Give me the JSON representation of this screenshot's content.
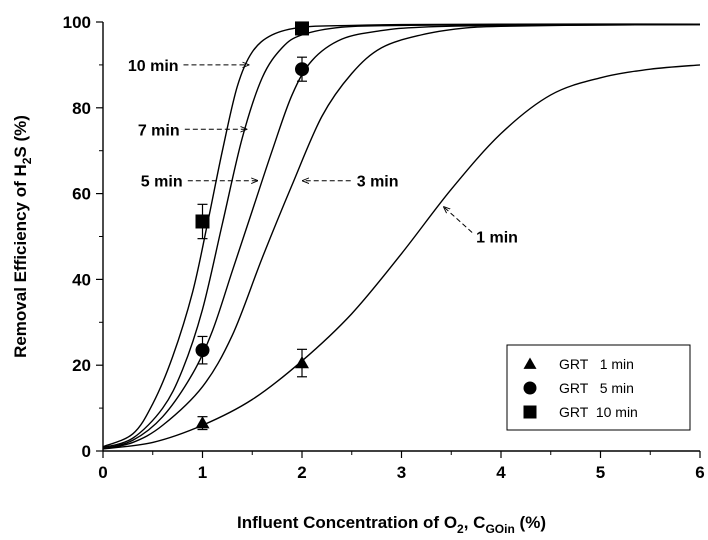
{
  "chart_data": {
    "type": "scatter",
    "xlabel": {
      "main": "Influent Concentration of O",
      "sub1": "2",
      "mid": ", C",
      "sub2": "GOin",
      "end": " (%)"
    },
    "ylabel": {
      "main": "Removal Efficiency of H",
      "sub": "2",
      "end": "S (%)"
    },
    "xlim": [
      0,
      6
    ],
    "ylim": [
      0,
      100
    ],
    "x_ticks": [
      0,
      1,
      2,
      3,
      4,
      5,
      6
    ],
    "y_ticks": [
      0,
      20,
      40,
      60,
      80,
      100
    ],
    "grid": false,
    "legend_position": "bottom-right",
    "model_curves": [
      {
        "label": "1 min",
        "x": [
          0,
          0.5,
          1,
          1.5,
          2,
          2.5,
          3,
          3.5,
          4,
          4.5,
          5,
          5.5,
          6
        ],
        "y": [
          0.5,
          2,
          6,
          12,
          21,
          32,
          46,
          61,
          74,
          83,
          87,
          89,
          90
        ]
      },
      {
        "label": "3 min",
        "x": [
          0,
          0.3,
          0.6,
          1,
          1.3,
          1.6,
          1.9,
          2.2,
          2.5,
          2.8,
          3.2,
          3.6,
          4,
          5,
          6
        ],
        "y": [
          0.5,
          2,
          6,
          15,
          27,
          45,
          62,
          78,
          88,
          94,
          97,
          98.5,
          99,
          99.3,
          99.4
        ]
      },
      {
        "label": "5 min",
        "x": [
          0,
          0.3,
          0.6,
          0.9,
          1.1,
          1.3,
          1.5,
          1.7,
          1.9,
          2.1,
          2.4,
          2.8,
          3.2,
          4,
          6
        ],
        "y": [
          0.5,
          2.5,
          8,
          18,
          28,
          42,
          56,
          70,
          83,
          91,
          96,
          98,
          98.8,
          99.2,
          99.4
        ]
      },
      {
        "label": "7 min",
        "x": [
          0,
          0.3,
          0.6,
          0.8,
          1,
          1.2,
          1.4,
          1.6,
          1.8,
          2,
          2.4,
          3,
          4,
          6
        ],
        "y": [
          0.8,
          3,
          10,
          19,
          33,
          53,
          73,
          87,
          94,
          97,
          98.8,
          99.2,
          99.4,
          99.4
        ]
      },
      {
        "label": "10 min",
        "x": [
          0,
          0.3,
          0.5,
          0.7,
          0.9,
          1.05,
          1.2,
          1.35,
          1.5,
          1.7,
          2,
          2.5,
          3,
          4,
          6
        ],
        "y": [
          1,
          4,
          11,
          22,
          37,
          53,
          70,
          85,
          93,
          97,
          98.8,
          99.2,
          99.4,
          99.5,
          99.5
        ]
      }
    ],
    "curve_annotations": [
      {
        "label": "10 min",
        "text_at": [
          0.25,
          90
        ],
        "arrow_to": [
          1.47,
          90
        ]
      },
      {
        "label": "7 min",
        "text_at": [
          0.35,
          75
        ],
        "arrow_to": [
          1.45,
          75
        ]
      },
      {
        "label": "5 min",
        "text_at": [
          0.38,
          63
        ],
        "arrow_to": [
          1.56,
          63
        ]
      },
      {
        "label": "3 min",
        "text_at": [
          2.55,
          63
        ],
        "arrow_to": [
          2.0,
          63
        ]
      },
      {
        "label": "1 min",
        "text_at": [
          3.75,
          50
        ],
        "arrow_to": [
          3.42,
          57
        ]
      }
    ],
    "series": [
      {
        "name": "GRT   1 min",
        "marker": "triangle",
        "points": [
          {
            "x": 1,
            "y": 6.5,
            "err": 1.5
          },
          {
            "x": 2,
            "y": 20.5,
            "err": 3.2
          }
        ]
      },
      {
        "name": "GRT   5 min",
        "marker": "circle",
        "points": [
          {
            "x": 1,
            "y": 23.5,
            "err": 3.2
          },
          {
            "x": 2,
            "y": 89,
            "err": 2.8
          }
        ]
      },
      {
        "name": "GRT  10 min",
        "marker": "square",
        "points": [
          {
            "x": 1,
            "y": 53.5,
            "err": 4.0
          },
          {
            "x": 2,
            "y": 98.5,
            "err": 0.8
          }
        ]
      }
    ]
  }
}
